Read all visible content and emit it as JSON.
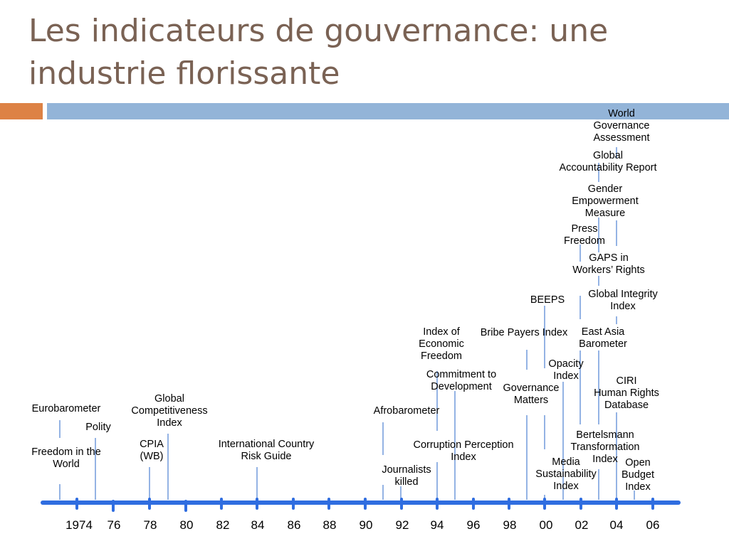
{
  "slide": {
    "title": "Les indicateurs de gouvernance: une industrie florissante"
  },
  "colors": {
    "title": "#7a6254",
    "accent_orange": "#dd8245",
    "accent_blue": "#93b4d8",
    "axis": "#2f6de0",
    "connector": "#5a8ad6"
  },
  "axis": {
    "tick_labels": [
      "1974",
      "76",
      "78",
      "80",
      "82",
      "84",
      "86",
      "88",
      "90",
      "92",
      "94",
      "96",
      "98",
      "00",
      "02",
      "04",
      "06"
    ]
  },
  "indicators": [
    {
      "id": "freedom-in-the-world",
      "lines": [
        "Freedom in the",
        "World"
      ]
    },
    {
      "id": "eurobarometer",
      "lines": [
        "Eurobarometer"
      ]
    },
    {
      "id": "polity",
      "lines": [
        "Polity"
      ]
    },
    {
      "id": "global-competitiveness-index",
      "lines": [
        "Global",
        "Competitiveness",
        "Index"
      ]
    },
    {
      "id": "cpia",
      "lines": [
        "CPIA",
        "(WB)"
      ]
    },
    {
      "id": "international-country-risk-guide",
      "lines": [
        "International Country",
        "Risk Guide"
      ]
    },
    {
      "id": "afrobarometer",
      "lines": [
        "Afrobarometer"
      ]
    },
    {
      "id": "journalists-killed",
      "lines": [
        "Journalists",
        "killed"
      ]
    },
    {
      "id": "corruption-perception-index",
      "lines": [
        "Corruption Perception",
        "Index"
      ]
    },
    {
      "id": "commitment-to-development",
      "lines": [
        "Commitment to",
        "Development"
      ]
    },
    {
      "id": "index-of-economic-freedom",
      "lines": [
        "Index of",
        "Economic",
        "Freedom"
      ]
    },
    {
      "id": "bribe-payers-index",
      "lines": [
        "Bribe Payers Index"
      ]
    },
    {
      "id": "governance-matters",
      "lines": [
        "Governance",
        "Matters"
      ]
    },
    {
      "id": "beeps",
      "lines": [
        "BEEPS"
      ]
    },
    {
      "id": "opacity-index",
      "lines": [
        "Opacity",
        "Index"
      ]
    },
    {
      "id": "media-sustainability-index",
      "lines": [
        "Media",
        "Sustainability",
        "Index"
      ]
    },
    {
      "id": "bertelsmann-transformation-index",
      "lines": [
        "Bertelsmann",
        "Transformation",
        "Index"
      ]
    },
    {
      "id": "east-asia-barometer",
      "lines": [
        "East Asia",
        "Barometer"
      ]
    },
    {
      "id": "ciri-human-rights-database",
      "lines": [
        "CIRI",
        "Human Rights",
        "Database"
      ]
    },
    {
      "id": "global-integrity-index",
      "lines": [
        "Global Integrity",
        "Index"
      ]
    },
    {
      "id": "gaps-in-workers-rights",
      "lines": [
        "GAPS in",
        "Workers’ Rights"
      ]
    },
    {
      "id": "press-freedom",
      "lines": [
        "Press",
        "Freedom"
      ]
    },
    {
      "id": "gender-empowerment-measure",
      "lines": [
        "Gender",
        "Empowerment",
        "Measure"
      ]
    },
    {
      "id": "global-accountability-report",
      "lines": [
        "Global",
        "Accountability Report"
      ]
    },
    {
      "id": "world-governance-assessment",
      "lines": [
        "World",
        "Governance",
        "Assessment"
      ]
    },
    {
      "id": "open-budget-index",
      "lines": [
        "Open",
        "Budget",
        "Index"
      ]
    }
  ]
}
